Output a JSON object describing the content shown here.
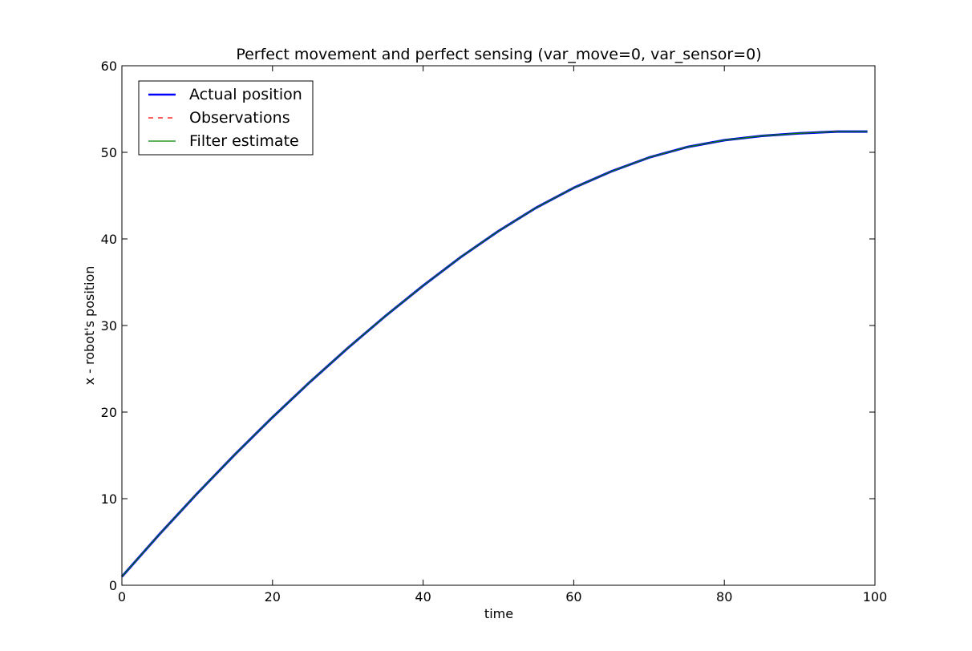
{
  "chart_data": {
    "type": "line",
    "title": "Perfect movement and perfect sensing (var_move=0, var_sensor=0)",
    "xlabel": "time",
    "ylabel": "x - robot's position",
    "xlim": [
      0,
      100
    ],
    "ylim": [
      0,
      60
    ],
    "xticks": [
      0,
      20,
      40,
      60,
      80,
      100
    ],
    "yticks": [
      0,
      10,
      20,
      30,
      40,
      50,
      60
    ],
    "grid": false,
    "legend_position": "upper-left",
    "x": [
      0,
      5,
      10,
      15,
      20,
      25,
      30,
      35,
      40,
      45,
      50,
      55,
      60,
      65,
      70,
      75,
      80,
      85,
      90,
      95,
      99
    ],
    "series": [
      {
        "name": "Actual position",
        "color": "#0000ff",
        "style": "solid-thick",
        "values": [
          1.0,
          5.9,
          10.6,
          15.1,
          19.4,
          23.5,
          27.4,
          31.1,
          34.6,
          37.9,
          40.9,
          43.6,
          45.9,
          47.8,
          49.4,
          50.6,
          51.4,
          51.9,
          52.2,
          52.4,
          52.4
        ]
      },
      {
        "name": "Observations",
        "color": "#ff0000",
        "style": "dashed",
        "values": [
          1.0,
          5.9,
          10.6,
          15.1,
          19.4,
          23.5,
          27.4,
          31.1,
          34.6,
          37.9,
          40.9,
          43.6,
          45.9,
          47.8,
          49.4,
          50.6,
          51.4,
          51.9,
          52.2,
          52.4,
          52.4
        ]
      },
      {
        "name": "Filter estimate",
        "color": "#008000",
        "style": "solid",
        "values": [
          1.0,
          5.9,
          10.6,
          15.1,
          19.4,
          23.5,
          27.4,
          31.1,
          34.6,
          37.9,
          40.9,
          43.6,
          45.9,
          47.8,
          49.4,
          50.6,
          51.4,
          51.9,
          52.2,
          52.4,
          52.4
        ]
      }
    ]
  }
}
